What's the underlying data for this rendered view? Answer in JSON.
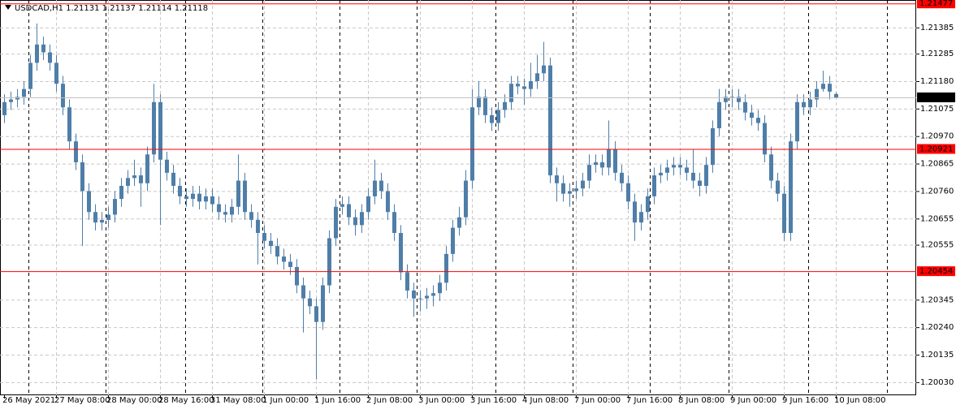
{
  "chart_data": {
    "type": "candlestick",
    "header": "USDCAD,H1  1.21131 1.21137 1.21114 1.21118",
    "color": "#4f7ea8",
    "categories": [
      "26 May 2021",
      null,
      null,
      null,
      null,
      null,
      null,
      null,
      "27 May 08:00",
      null,
      null,
      null,
      null,
      null,
      null,
      null,
      "28 May 00:00",
      null,
      null,
      null,
      null,
      null,
      null,
      null,
      "28 May 16:00",
      null,
      null,
      null,
      null,
      null,
      null,
      null,
      "31 May 08:00",
      null,
      null,
      null,
      null,
      null,
      null,
      null,
      "1 Jun 00:00",
      null,
      null,
      null,
      null,
      null,
      null,
      null,
      "1 Jun 16:00",
      null,
      null,
      null,
      null,
      null,
      null,
      null,
      "2 Jun 08:00",
      null,
      null,
      null,
      null,
      null,
      null,
      null,
      "3 Jun 00:00",
      null,
      null,
      null,
      null,
      null,
      null,
      null,
      "3 Jun 16:00",
      null,
      null,
      null,
      null,
      null,
      null,
      null,
      "4 Jun 08:00",
      null,
      null,
      null,
      null,
      null,
      null,
      null,
      "7 Jun 00:00",
      null,
      null,
      null,
      null,
      null,
      null,
      null,
      "7 Jun 16:00",
      null,
      null,
      null,
      null,
      null,
      null,
      null,
      "8 Jun 08:00",
      null,
      null,
      null,
      null,
      null,
      null,
      null,
      "9 Jun 00:00",
      null,
      null,
      null,
      null,
      null,
      null,
      null,
      "9 Jun 16:00",
      null,
      null,
      null,
      null,
      null,
      null,
      null,
      "10 Jun 08:00"
    ],
    "open": [
      1.2105,
      1.211,
      1.2111,
      1.2112,
      1.2115,
      1.2125,
      1.2132,
      1.2129,
      1.2125,
      1.2117,
      1.2108,
      1.2095,
      1.2087,
      1.2076,
      1.2068,
      1.2064,
      1.2065,
      1.2067,
      1.2073,
      1.2078,
      1.2081,
      1.2082,
      1.2079,
      1.209,
      1.211,
      1.2088,
      1.2083,
      1.2078,
      1.2074,
      1.2073,
      1.2075,
      1.2072,
      1.2074,
      1.2071,
      1.2068,
      1.2067,
      1.207,
      1.208,
      1.2068,
      1.2065,
      1.206,
      1.2057,
      1.2055,
      1.2051,
      1.2049,
      1.2047,
      1.204,
      1.2035,
      1.2032,
      1.2026,
      1.204,
      1.2058,
      1.207,
      1.2071,
      1.2066,
      1.2063,
      1.2068,
      1.2074,
      1.208,
      1.2076,
      1.2068,
      1.206,
      1.2045,
      1.2038,
      1.2035,
      1.2035,
      1.2036,
      1.2037,
      1.2041,
      1.2052,
      1.2062,
      1.2066,
      1.208,
      1.2108,
      1.2112,
      1.2105,
      1.2102,
      1.2107,
      1.211,
      1.2117,
      1.2116,
      1.2115,
      1.2118,
      1.2121,
      1.2124,
      1.2082,
      1.2079,
      1.2075,
      1.2076,
      1.2077,
      1.208,
      1.2086,
      1.2087,
      1.2085,
      1.2092,
      1.2083,
      1.2079,
      1.2072,
      1.2064,
      1.2068,
      1.2074,
      1.2082,
      1.2083,
      1.2085,
      1.2086,
      1.2085,
      1.2083,
      1.208,
      1.2078,
      1.2086,
      1.21,
      1.211,
      1.2112,
      1.2112,
      1.211,
      1.2106,
      1.2104,
      1.2102,
      1.209,
      1.208,
      1.2075,
      1.206,
      1.2095,
      1.211,
      1.2108,
      1.2111,
      1.2115,
      1.2117,
      1.21131
    ],
    "high": [
      1.2113,
      1.2114,
      1.2115,
      1.2118,
      1.2128,
      1.214,
      1.2135,
      1.2132,
      1.2128,
      1.212,
      1.2111,
      1.2098,
      1.209,
      1.2079,
      1.2071,
      1.2068,
      1.207,
      1.2076,
      1.2081,
      1.2084,
      1.2088,
      1.2085,
      1.2093,
      1.2117,
      1.2113,
      1.2091,
      1.2086,
      1.2081,
      1.2077,
      1.2078,
      1.2078,
      1.2077,
      1.2077,
      1.2074,
      1.2071,
      1.2073,
      1.209,
      1.2083,
      1.2071,
      1.2068,
      1.2063,
      1.206,
      1.2058,
      1.2054,
      1.2052,
      1.205,
      1.2043,
      1.2038,
      1.2035,
      1.2043,
      1.2061,
      1.2073,
      1.2074,
      1.2074,
      1.2069,
      1.2071,
      1.2077,
      1.2088,
      1.2083,
      1.2079,
      1.2071,
      1.2063,
      1.2048,
      1.2041,
      1.2038,
      1.2039,
      1.204,
      1.2044,
      1.2055,
      1.2065,
      1.207,
      1.2084,
      1.2115,
      1.2118,
      1.2115,
      1.2108,
      1.211,
      1.2113,
      1.212,
      1.212,
      1.2119,
      1.2125,
      1.2128,
      1.2133,
      1.2127,
      1.2085,
      1.2082,
      1.2079,
      1.208,
      1.2083,
      1.209,
      1.209,
      1.209,
      1.2103,
      1.2095,
      1.2086,
      1.2082,
      1.2075,
      1.2071,
      1.2077,
      1.2085,
      1.2086,
      1.2088,
      1.2089,
      1.2089,
      1.2088,
      1.2092,
      1.2083,
      1.2089,
      1.2103,
      1.2115,
      1.2115,
      1.2115,
      1.2115,
      1.2113,
      1.2109,
      1.2107,
      1.2105,
      1.2093,
      1.2083,
      1.2078,
      1.2098,
      1.2113,
      1.2113,
      1.2114,
      1.2118,
      1.2122,
      1.212,
      1.21137
    ],
    "low": [
      1.2102,
      1.2107,
      1.2108,
      1.2109,
      1.2112,
      1.2122,
      1.2126,
      1.2122,
      1.2114,
      1.2105,
      1.2092,
      1.2084,
      1.2055,
      1.2065,
      1.2061,
      1.2061,
      1.2062,
      1.2064,
      1.207,
      1.2075,
      1.2078,
      1.207,
      1.2076,
      1.2087,
      1.2063,
      1.208,
      1.2075,
      1.2071,
      1.207,
      1.207,
      1.2069,
      1.2069,
      1.2068,
      1.2065,
      1.2064,
      1.2064,
      1.2067,
      1.2065,
      1.2062,
      1.2048,
      1.2054,
      1.2052,
      1.2048,
      1.2046,
      1.2044,
      1.2037,
      1.2022,
      1.2029,
      1.2004,
      1.2023,
      1.2037,
      1.2055,
      1.2067,
      1.2063,
      1.2059,
      1.206,
      1.2065,
      1.2071,
      1.2073,
      1.2065,
      1.2057,
      1.2042,
      1.2035,
      1.2028,
      1.203,
      1.2031,
      1.2032,
      1.2034,
      1.2038,
      1.2049,
      1.2059,
      1.2063,
      1.2077,
      1.2105,
      1.2102,
      1.2099,
      1.2099,
      1.2104,
      1.2107,
      1.2113,
      1.2109,
      1.2112,
      1.2115,
      1.2118,
      1.2079,
      1.2072,
      1.2072,
      1.207,
      1.2073,
      1.2074,
      1.2077,
      1.2083,
      1.2082,
      1.2082,
      1.208,
      1.2076,
      1.2069,
      1.2057,
      1.2061,
      1.2065,
      1.2071,
      1.2079,
      1.208,
      1.2082,
      1.2082,
      1.208,
      1.2077,
      1.2074,
      1.2075,
      1.2083,
      1.2097,
      1.2107,
      1.2108,
      1.2107,
      1.2103,
      1.2101,
      1.2099,
      1.2087,
      1.2077,
      1.2072,
      1.2057,
      1.2057,
      1.2092,
      1.2105,
      1.2105,
      1.2108,
      1.2114,
      1.2111,
      1.21114
    ],
    "close": [
      1.211,
      1.2111,
      1.2112,
      1.2115,
      1.2125,
      1.2132,
      1.2129,
      1.2125,
      1.2117,
      1.2108,
      1.2095,
      1.2087,
      1.2076,
      1.2068,
      1.2064,
      1.2065,
      1.2067,
      1.2073,
      1.2078,
      1.2081,
      1.2082,
      1.2079,
      1.209,
      1.211,
      1.2088,
      1.2083,
      1.2078,
      1.2074,
      1.2073,
      1.2075,
      1.2072,
      1.2074,
      1.2071,
      1.2068,
      1.2067,
      1.207,
      1.208,
      1.2068,
      1.2065,
      1.206,
      1.2057,
      1.2055,
      1.2051,
      1.2049,
      1.2047,
      1.204,
      1.2035,
      1.2032,
      1.2026,
      1.204,
      1.2058,
      1.207,
      1.2071,
      1.2066,
      1.2063,
      1.2068,
      1.2074,
      1.208,
      1.2076,
      1.2068,
      1.206,
      1.2045,
      1.2038,
      1.2035,
      1.2035,
      1.2036,
      1.2037,
      1.2041,
      1.2052,
      1.2062,
      1.2066,
      1.208,
      1.2108,
      1.2112,
      1.2105,
      1.2102,
      1.2107,
      1.211,
      1.2117,
      1.2116,
      1.2115,
      1.2118,
      1.2121,
      1.2124,
      1.2082,
      1.2079,
      1.2075,
      1.2076,
      1.2077,
      1.208,
      1.2086,
      1.2087,
      1.2085,
      1.2092,
      1.2083,
      1.2079,
      1.2072,
      1.2064,
      1.2068,
      1.2074,
      1.2082,
      1.2083,
      1.2085,
      1.2086,
      1.2085,
      1.2083,
      1.208,
      1.2078,
      1.2086,
      1.21,
      1.211,
      1.2112,
      1.2112,
      1.211,
      1.2106,
      1.2104,
      1.2102,
      1.209,
      1.208,
      1.2075,
      1.206,
      1.2095,
      1.211,
      1.2108,
      1.2111,
      1.2115,
      1.2117,
      1.2114,
      1.21118
    ],
    "ylim": [
      1.1998,
      1.2149
    ],
    "yticks": [
      1.21385,
      1.21285,
      {
        "value": 1.2118,
        "label": "1.21180"
      },
      1.21075,
      {
        "value": 1.2097,
        "label": "1.20970"
      },
      1.20865,
      {
        "value": 1.2076,
        "label": "1.20760"
      },
      1.20655,
      1.20555,
      1.20345,
      {
        "value": 1.2024,
        "label": "1.20240"
      },
      1.20135,
      {
        "value": 1.2003,
        "label": "1.20030"
      }
    ],
    "grid": true,
    "hlines": [
      {
        "value": 1.21477,
        "color": "#ff0000"
      },
      {
        "value": 1.20921,
        "color": "#ff0000"
      },
      {
        "value": 1.20454,
        "color": "#ff0000"
      },
      {
        "value": 1.21118,
        "color": "#c0c0c0",
        "label_bg": "#000000"
      }
    ]
  }
}
